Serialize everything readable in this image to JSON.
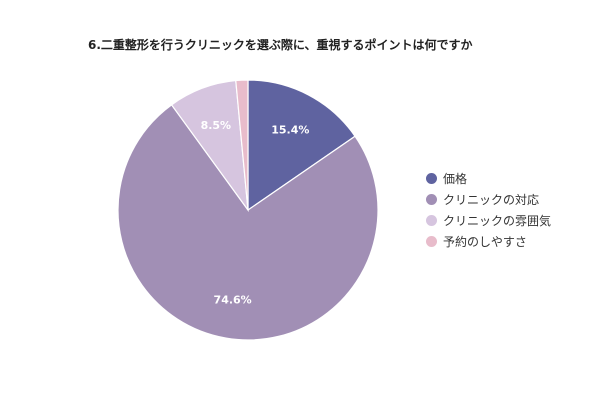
{
  "chart_data": {
    "type": "pie",
    "title": "6.二重整形を行うクリニックを選ぶ際に、重視するポイントは何ですか",
    "categories": [
      "価格",
      "クリニックの対応",
      "クリニックの雰囲気",
      "予約のしやすさ"
    ],
    "values": [
      15.4,
      74.6,
      8.5,
      1.5
    ],
    "data_labels": [
      "15.4%",
      "74.6%",
      "8.5%",
      ""
    ],
    "colors": [
      "#5f63a0",
      "#a18fb5",
      "#d6c5df",
      "#e8bccb"
    ],
    "legend_position": "right"
  }
}
